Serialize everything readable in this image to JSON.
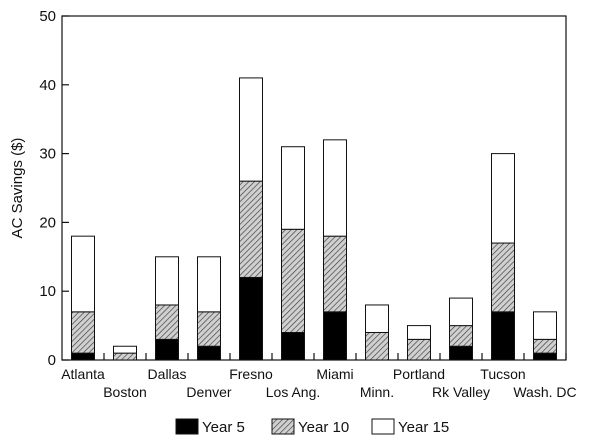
{
  "chart_data": {
    "type": "bar",
    "stacked": true,
    "ylabel": "AC Savings ($)",
    "xlabel": "",
    "ylim": [
      0,
      50
    ],
    "yticks": [
      0,
      10,
      20,
      30,
      40,
      50
    ],
    "grid": false,
    "legend_position": "bottom",
    "categories": [
      "Atlanta",
      "Boston",
      "Dallas",
      "Denver",
      "Fresno",
      "Los Ang.",
      "Miami",
      "Minn.",
      "Portland",
      "Rk Valley",
      "Tucson",
      "Wash. DC"
    ],
    "series": [
      {
        "name": "Year 5",
        "fill": "solid",
        "color": "#000000",
        "values": [
          1,
          0,
          3,
          2,
          12,
          4,
          7,
          0,
          0,
          2,
          7,
          1
        ]
      },
      {
        "name": "Year 10",
        "fill": "hatched",
        "color": "#b5b5b5",
        "values": [
          6,
          1,
          5,
          5,
          14,
          15,
          11,
          4,
          3,
          3,
          10,
          2
        ]
      },
      {
        "name": "Year 15",
        "fill": "empty",
        "color": "#ffffff",
        "values": [
          11,
          1,
          7,
          8,
          15,
          12,
          14,
          4,
          2,
          4,
          13,
          4
        ]
      }
    ]
  }
}
